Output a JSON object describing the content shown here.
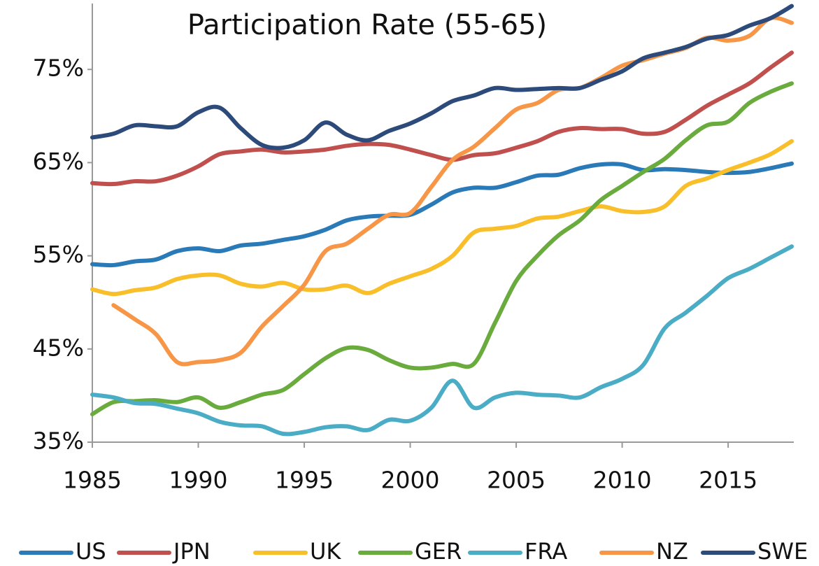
{
  "chart_data": {
    "type": "line",
    "title": "Participation Rate (55-65)",
    "x": [
      1985,
      1986,
      1987,
      1988,
      1989,
      1990,
      1991,
      1992,
      1993,
      1994,
      1995,
      1996,
      1997,
      1998,
      1999,
      2000,
      2001,
      2002,
      2003,
      2004,
      2005,
      2006,
      2007,
      2008,
      2009,
      2010,
      2011,
      2012,
      2013,
      2014,
      2015,
      2016,
      2017,
      2018
    ],
    "xlim": [
      1985,
      2018
    ],
    "xticks": [
      1985,
      1990,
      1995,
      2000,
      2005,
      2010,
      2015
    ],
    "ylim": [
      35,
      82
    ],
    "yticks": [
      {
        "value": 35,
        "label": "35%"
      },
      {
        "value": 45,
        "label": "45%"
      },
      {
        "value": 55,
        "label": "55%"
      },
      {
        "value": 65,
        "label": "65%"
      },
      {
        "value": 75,
        "label": "75%"
      }
    ],
    "grid": false,
    "legend": "bottom",
    "series": [
      {
        "name": "US",
        "color": "#2a7ab8",
        "values": [
          54.1,
          54.0,
          54.4,
          54.6,
          55.5,
          55.8,
          55.5,
          56.1,
          56.3,
          56.7,
          57.1,
          57.8,
          58.8,
          59.2,
          59.3,
          59.4,
          60.5,
          61.8,
          62.3,
          62.3,
          62.9,
          63.6,
          63.7,
          64.4,
          64.8,
          64.8,
          64.2,
          64.3,
          64.2,
          64.0,
          63.9,
          64.0,
          64.4,
          64.9
        ]
      },
      {
        "name": "JPN",
        "color": "#c0504d",
        "values": [
          62.8,
          62.7,
          63.0,
          63.0,
          63.6,
          64.6,
          65.9,
          66.2,
          66.4,
          66.1,
          66.2,
          66.4,
          66.8,
          67.0,
          66.9,
          66.4,
          65.8,
          65.3,
          65.8,
          66.0,
          66.6,
          67.3,
          68.3,
          68.7,
          68.6,
          68.6,
          68.1,
          68.3,
          69.6,
          71.1,
          72.3,
          73.5,
          75.2,
          76.8
        ]
      },
      {
        "name": "UK",
        "color": "#f8bf2a",
        "values": [
          51.4,
          50.9,
          51.3,
          51.6,
          52.5,
          52.9,
          52.9,
          52.0,
          51.7,
          52.1,
          51.4,
          51.4,
          51.8,
          51.0,
          52.0,
          52.8,
          53.6,
          55.0,
          57.5,
          57.9,
          58.2,
          59.0,
          59.2,
          59.8,
          60.3,
          59.8,
          59.7,
          60.3,
          62.5,
          63.3,
          64.2,
          65.0,
          65.9,
          67.3
        ]
      },
      {
        "name": "GER",
        "color": "#6aab3e",
        "values": [
          38.0,
          39.3,
          39.4,
          39.5,
          39.3,
          39.8,
          38.7,
          39.3,
          40.1,
          40.6,
          42.3,
          44.0,
          45.1,
          44.9,
          43.8,
          43.0,
          43.0,
          43.4,
          43.4,
          47.8,
          52.3,
          55.0,
          57.2,
          58.8,
          61.0,
          62.5,
          64.0,
          65.4,
          67.4,
          69.0,
          69.4,
          71.4,
          72.6,
          73.5
        ]
      },
      {
        "name": "FRA",
        "color": "#4bacc6",
        "values": [
          40.1,
          39.8,
          39.2,
          39.1,
          38.6,
          38.1,
          37.2,
          36.8,
          36.7,
          35.9,
          36.1,
          36.6,
          36.7,
          36.3,
          37.4,
          37.3,
          38.7,
          41.6,
          38.7,
          39.8,
          40.3,
          40.1,
          40.0,
          39.8,
          40.9,
          41.8,
          43.3,
          47.2,
          48.9,
          50.7,
          52.6,
          53.6,
          54.8,
          56.0
        ]
      },
      {
        "name": "NZ",
        "color": "#f79646",
        "values": [
          null,
          49.7,
          48.2,
          46.6,
          43.6,
          43.6,
          43.8,
          44.6,
          47.4,
          49.6,
          51.9,
          55.5,
          56.3,
          57.9,
          59.4,
          59.6,
          62.4,
          65.3,
          66.7,
          68.7,
          70.7,
          71.4,
          72.8,
          73.0,
          74.1,
          75.4,
          76.0,
          76.7,
          77.3,
          78.4,
          78.1,
          78.6,
          80.5,
          80.0
        ]
      },
      {
        "name": "SWE",
        "color": "#2c4a7a",
        "values": [
          67.7,
          68.1,
          69.0,
          68.9,
          68.9,
          70.4,
          70.9,
          68.7,
          66.9,
          66.6,
          67.4,
          69.3,
          68.0,
          67.4,
          68.4,
          69.2,
          70.3,
          71.6,
          72.2,
          73.0,
          72.8,
          72.9,
          73.0,
          73.0,
          73.9,
          74.8,
          76.2,
          76.8,
          77.4,
          78.3,
          78.7,
          79.7,
          80.5,
          81.8
        ]
      }
    ]
  }
}
